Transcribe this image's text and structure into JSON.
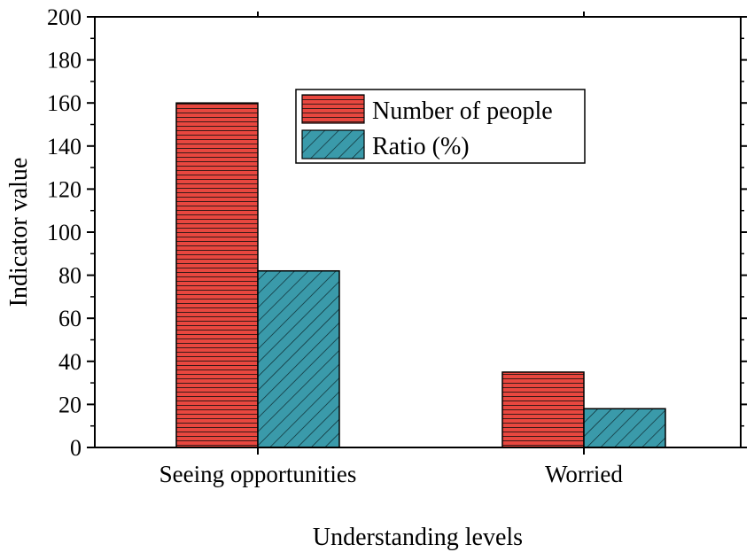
{
  "chart_data": {
    "type": "bar",
    "title": "",
    "xlabel": "Understanding levels",
    "ylabel": "Indicator value",
    "categories": [
      "Seeing opportunities",
      "Worried"
    ],
    "series": [
      {
        "name": "Number of people",
        "values": [
          160,
          35
        ],
        "color": "#e8473f",
        "pattern": "horizontal-hatch"
      },
      {
        "name": "Ratio (%)",
        "values": [
          82,
          18
        ],
        "color": "#3a9aaa",
        "pattern": "diagonal-hatch"
      }
    ],
    "ylim": [
      0,
      200
    ],
    "yticks": [
      0,
      20,
      40,
      60,
      80,
      100,
      120,
      140,
      160,
      180,
      200
    ],
    "grid": false,
    "legend_position": "top-center"
  }
}
